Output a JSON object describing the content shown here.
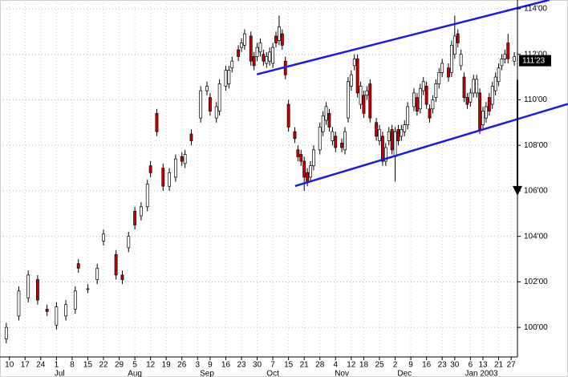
{
  "chart_data": {
    "type": "candlestick",
    "up_color": "#ffffff",
    "down_color": "#cc0000",
    "outline_color": "#000000",
    "grid": true,
    "xlim": [
      -3,
      162
    ],
    "ylim": [
      98.7,
      114.386
    ],
    "yticks": [
      {
        "value": 100,
        "label": "100'00"
      },
      {
        "value": 102,
        "label": "102'00"
      },
      {
        "value": 104,
        "label": "104'00"
      },
      {
        "value": 106,
        "label": "106'00"
      },
      {
        "value": 108,
        "label": "108'00"
      },
      {
        "value": 110,
        "label": "110'00"
      },
      {
        "value": 112,
        "label": "112'00"
      },
      {
        "value": 114,
        "label": "114'00"
      }
    ],
    "xticks": [
      {
        "value": 0,
        "label": "10"
      },
      {
        "value": 5,
        "label": "17"
      },
      {
        "value": 10,
        "label": "24"
      },
      {
        "value": 15,
        "label": "1"
      },
      {
        "value": 20,
        "label": "8"
      },
      {
        "value": 25,
        "label": "15"
      },
      {
        "value": 30,
        "label": "22"
      },
      {
        "value": 35,
        "label": "29"
      },
      {
        "value": 40,
        "label": "5"
      },
      {
        "value": 45,
        "label": "12"
      },
      {
        "value": 50,
        "label": "19"
      },
      {
        "value": 55,
        "label": "26"
      },
      {
        "value": 60,
        "label": "3"
      },
      {
        "value": 64,
        "label": "9"
      },
      {
        "value": 69,
        "label": "16"
      },
      {
        "value": 74,
        "label": "23"
      },
      {
        "value": 79,
        "label": "30"
      },
      {
        "value": 84,
        "label": "7"
      },
      {
        "value": 89,
        "label": "15"
      },
      {
        "value": 94,
        "label": "21"
      },
      {
        "value": 99,
        "label": "28"
      },
      {
        "value": 104,
        "label": "4"
      },
      {
        "value": 109,
        "label": "12"
      },
      {
        "value": 113,
        "label": "18"
      },
      {
        "value": 118,
        "label": "25"
      },
      {
        "value": 123,
        "label": "2"
      },
      {
        "value": 128,
        "label": "9"
      },
      {
        "value": 133,
        "label": "16"
      },
      {
        "value": 138,
        "label": "23"
      },
      {
        "value": 142,
        "label": "30"
      },
      {
        "value": 147,
        "label": "6"
      },
      {
        "value": 151,
        "label": "13"
      },
      {
        "value": 156,
        "label": "21"
      },
      {
        "value": 160,
        "label": "27"
      }
    ],
    "month_labels": [
      {
        "value": 16,
        "label": "Jul"
      },
      {
        "value": 40,
        "label": "Aug"
      },
      {
        "value": 63,
        "label": "Sep"
      },
      {
        "value": 84,
        "label": "Oct"
      },
      {
        "value": 106,
        "label": "Nov"
      },
      {
        "value": 126,
        "label": "Dec"
      },
      {
        "value": 150.5,
        "label": "Jan 2003"
      }
    ],
    "last_price": {
      "value": 111.72,
      "label": "111'23"
    },
    "x": [
      -1,
      3,
      6,
      9,
      12,
      15,
      18,
      21,
      22,
      25,
      28,
      30,
      34,
      36,
      38,
      40,
      42,
      44,
      45,
      47,
      49,
      51,
      53,
      55,
      56,
      58,
      61,
      63,
      64,
      66,
      67,
      69,
      70,
      71,
      73,
      74,
      75,
      77,
      78,
      79,
      80,
      81,
      82,
      83,
      84,
      85,
      86,
      87,
      88,
      89,
      91,
      92,
      93,
      94,
      95,
      96,
      97,
      99,
      100,
      101,
      102,
      103,
      104,
      106,
      107,
      108,
      109,
      110,
      111,
      112,
      113,
      114,
      115,
      117,
      118,
      119,
      120,
      121,
      122,
      123,
      124,
      125,
      126,
      127,
      129,
      130,
      131,
      132,
      133,
      134,
      135,
      136,
      137,
      138,
      140,
      141,
      142,
      143,
      144,
      145,
      146,
      147,
      148,
      149,
      150,
      151,
      152,
      153,
      154,
      155,
      156,
      157,
      158,
      159,
      161
    ],
    "open": [
      99.5,
      100.5,
      101.3,
      102.1,
      100.8,
      100.1,
      100.5,
      100.8,
      102.8,
      101.7,
      102.1,
      103.8,
      103.2,
      102.3,
      103.5,
      105.1,
      104.9,
      105.3,
      107.1,
      109.4,
      107.0,
      106.2,
      106.6,
      107.5,
      107.2,
      108.5,
      109.2,
      110.4,
      110.1,
      109.2,
      109.5,
      110.6,
      110.7,
      111.4,
      112.2,
      112.3,
      112.4,
      112.8,
      111.9,
      111.9,
      112.1,
      112.0,
      111.6,
      111.7,
      111.6,
      112.8,
      112.6,
      112.9,
      111.7,
      109.8,
      108.6,
      107.8,
      107.6,
      107.3,
      106.8,
      106.6,
      107.1,
      107.8,
      108.6,
      109.1,
      109.4,
      108.2,
      108.4,
      108.1,
      107.8,
      109.2,
      110.6,
      111.5,
      111.8,
      109.8,
      110.2,
      110.2,
      110.7,
      109.0,
      108.2,
      108.4,
      107.3,
      108.2,
      108.7,
      107.5,
      108.7,
      108.4,
      108.6,
      108.9,
      109.7,
      110.1,
      109.6,
      110.4,
      110.6,
      109.6,
      109.6,
      110.1,
      110.7,
      111.2,
      111.4,
      111.2,
      112.0,
      112.9,
      111.5,
      111.0,
      110.1,
      109.9,
      110.3,
      110.3,
      110.3,
      108.9,
      109.2,
      110.1,
      109.8,
      110.4,
      110.8,
      111.5,
      111.8,
      112.5,
      111.7
    ],
    "high": [
      100.2,
      101.8,
      102.5,
      102.3,
      101.0,
      101.1,
      101.2,
      101.8,
      103.0,
      101.9,
      102.8,
      104.3,
      103.4,
      102.5,
      104.2,
      105.3,
      105.5,
      106.5,
      107.3,
      109.6,
      107.2,
      107.0,
      107.6,
      107.7,
      107.8,
      108.7,
      110.6,
      110.8,
      110.3,
      109.9,
      110.9,
      111.5,
      111.5,
      111.9,
      112.4,
      112.7,
      113.1,
      113.0,
      112.1,
      112.5,
      112.7,
      112.2,
      112.1,
      112.3,
      112.5,
      113.0,
      113.7,
      113.1,
      111.9,
      110.0,
      108.8,
      108.0,
      107.8,
      107.5,
      107.0,
      107.3,
      108.0,
      109.0,
      109.5,
      109.9,
      109.6,
      108.8,
      108.6,
      108.3,
      108.8,
      111.0,
      111.3,
      112.0,
      112.0,
      110.8,
      110.4,
      110.6,
      110.9,
      109.2,
      108.9,
      108.6,
      108.1,
      108.8,
      108.9,
      108.8,
      108.9,
      108.9,
      109.1,
      109.9,
      110.5,
      110.3,
      110.7,
      111.0,
      110.8,
      109.8,
      110.2,
      110.9,
      111.4,
      111.8,
      111.6,
      112.6,
      113.7,
      113.1,
      112.2,
      111.2,
      110.3,
      110.5,
      111.1,
      111.1,
      110.5,
      109.7,
      109.9,
      110.3,
      110.8,
      111.2,
      111.6,
      112.0,
      112.2,
      112.9,
      112.1
    ],
    "low": [
      99.3,
      100.3,
      101.1,
      101.0,
      100.5,
      99.9,
      100.3,
      100.6,
      102.4,
      101.5,
      101.9,
      103.6,
      102.1,
      101.9,
      103.3,
      104.3,
      104.7,
      105.1,
      106.6,
      108.4,
      106.0,
      106.0,
      106.4,
      107.1,
      107.0,
      108.0,
      109.0,
      110.2,
      109.3,
      109.0,
      109.3,
      110.4,
      110.5,
      111.2,
      111.7,
      112.1,
      112.2,
      111.5,
      111.3,
      111.7,
      111.9,
      111.5,
      111.4,
      111.5,
      111.4,
      112.3,
      112.4,
      112.2,
      110.9,
      108.6,
      108.1,
      107.3,
      107.1,
      106.0,
      106.2,
      106.4,
      106.9,
      107.6,
      108.4,
      108.9,
      108.6,
      108.0,
      107.7,
      107.7,
      107.6,
      109.0,
      110.4,
      111.3,
      110.1,
      109.6,
      109.2,
      110.0,
      109.0,
      108.2,
      108.0,
      107.1,
      107.1,
      108.0,
      107.6,
      106.4,
      108.0,
      108.2,
      108.4,
      108.7,
      109.5,
      109.3,
      109.4,
      110.2,
      109.6,
      109.0,
      109.4,
      109.9,
      110.5,
      111.0,
      110.8,
      111.0,
      111.8,
      112.3,
      111.3,
      109.9,
      109.6,
      109.7,
      110.1,
      110.1,
      108.5,
      108.7,
      109.0,
      109.3,
      109.6,
      110.2,
      110.6,
      111.3,
      111.6,
      111.6,
      111.5
    ],
    "close": [
      100.0,
      101.6,
      102.3,
      101.2,
      100.7,
      100.9,
      101.0,
      101.6,
      102.6,
      101.7,
      102.6,
      104.1,
      102.3,
      102.1,
      104.0,
      104.5,
      105.3,
      106.3,
      106.8,
      108.6,
      106.2,
      106.8,
      107.4,
      107.3,
      107.6,
      108.2,
      110.4,
      110.6,
      109.5,
      109.7,
      110.7,
      111.3,
      111.3,
      111.7,
      111.9,
      112.5,
      112.9,
      111.7,
      111.5,
      112.3,
      112.5,
      111.7,
      111.9,
      112.1,
      112.3,
      112.5,
      113.2,
      112.4,
      111.1,
      108.8,
      108.3,
      107.5,
      107.3,
      106.6,
      106.4,
      107.1,
      107.8,
      108.8,
      109.3,
      109.7,
      108.8,
      108.6,
      107.9,
      107.9,
      108.6,
      110.8,
      111.1,
      111.8,
      110.3,
      110.6,
      109.4,
      110.4,
      109.2,
      108.4,
      108.7,
      107.3,
      107.9,
      108.6,
      107.8,
      108.6,
      108.2,
      108.7,
      108.9,
      109.7,
      110.3,
      109.5,
      110.5,
      110.8,
      109.8,
      109.2,
      110.0,
      110.7,
      111.2,
      111.6,
      111.0,
      112.4,
      112.8,
      112.5,
      112.0,
      110.1,
      109.8,
      110.3,
      110.9,
      110.9,
      108.7,
      109.5,
      109.7,
      109.5,
      110.6,
      111.0,
      111.4,
      111.8,
      112.0,
      111.8,
      111.9
    ],
    "trendlines": [
      {
        "x": [
          78.9,
          172.2
        ],
        "y": [
          111.12,
          114.39
        ],
        "color": "#1a1aee"
      },
      {
        "x": [
          91.1,
          178.1
        ],
        "y": [
          106.21,
          109.82
        ],
        "color": "#1a1aee"
      }
    ],
    "arrow": {
      "x": 162,
      "y": [
        110.88,
        105.79
      ],
      "color": "#000000"
    }
  }
}
